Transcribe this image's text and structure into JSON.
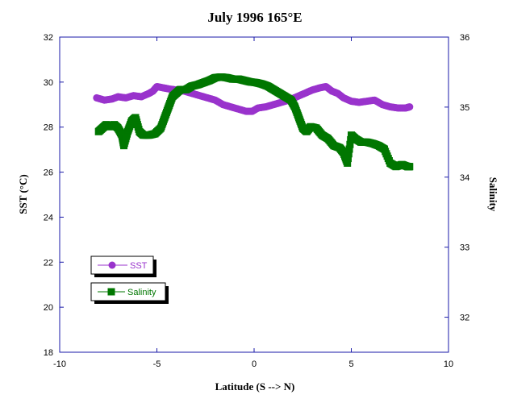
{
  "chart_data": {
    "type": "scatter",
    "title": "July 1996 165°E",
    "xlabel": "Latitude (S --> N)",
    "ylabel": "SST (°C)",
    "y2label": "Salinity",
    "xlim": [
      -10,
      10
    ],
    "ylim": [
      18,
      32
    ],
    "y2lim": [
      31.5,
      36
    ],
    "x_ticks": [
      "-10",
      "-5",
      "0",
      "5",
      "10"
    ],
    "y_ticks": [
      "18",
      "20",
      "22",
      "24",
      "26",
      "28",
      "30",
      "32"
    ],
    "y2_ticks": [
      "32",
      "33",
      "34",
      "35",
      "36"
    ],
    "grid": false,
    "series": [
      {
        "name": "SST",
        "axis": "left",
        "color": "#9933CC",
        "marker": "circle",
        "x": [
          -8.1,
          -7.7,
          -7.3,
          -7.0,
          -6.6,
          -6.2,
          -5.8,
          -5.4,
          -5.2,
          -5.0,
          -4.7,
          -4.4,
          -4.0,
          -3.6,
          -3.2,
          -2.8,
          -2.4,
          -2.0,
          -1.6,
          -1.2,
          -0.8,
          -0.4,
          -0.1,
          0.2,
          0.6,
          1.0,
          1.4,
          1.8,
          2.2,
          2.6,
          3.0,
          3.4,
          3.7,
          4.0,
          4.3,
          4.6,
          5.0,
          5.4,
          5.8,
          6.2,
          6.6,
          7.0,
          7.4,
          7.8,
          8.0
        ],
        "y": [
          29.3,
          29.2,
          29.25,
          29.35,
          29.3,
          29.4,
          29.35,
          29.5,
          29.6,
          29.8,
          29.75,
          29.7,
          29.65,
          29.6,
          29.5,
          29.4,
          29.3,
          29.2,
          29.0,
          28.9,
          28.8,
          28.7,
          28.7,
          28.85,
          28.9,
          29.0,
          29.1,
          29.2,
          29.35,
          29.5,
          29.65,
          29.75,
          29.8,
          29.6,
          29.5,
          29.3,
          29.15,
          29.1,
          29.15,
          29.2,
          29.0,
          28.9,
          28.85,
          28.85,
          28.9
        ]
      },
      {
        "name": "Salinity",
        "axis": "right",
        "color": "#007700",
        "marker": "square",
        "x": [
          -8.0,
          -7.8,
          -7.6,
          -7.4,
          -7.2,
          -7.0,
          -6.8,
          -6.7,
          -6.5,
          -6.3,
          -6.1,
          -5.9,
          -5.7,
          -5.4,
          -5.1,
          -4.8,
          -4.6,
          -4.4,
          -4.2,
          -4.0,
          -3.8,
          -3.5,
          -3.2,
          -2.9,
          -2.6,
          -2.3,
          -2.0,
          -1.7,
          -1.4,
          -1.1,
          -0.8,
          -0.5,
          -0.2,
          0.1,
          0.4,
          0.7,
          1.0,
          1.3,
          1.6,
          1.9,
          2.1,
          2.3,
          2.5,
          2.7,
          2.9,
          3.2,
          3.5,
          3.8,
          4.1,
          4.4,
          4.6,
          4.8,
          5.0,
          5.2,
          5.5,
          5.8,
          6.1,
          6.4,
          6.7,
          7.0,
          7.3,
          7.6,
          7.9,
          8.0
        ],
        "y": [
          34.65,
          34.7,
          34.75,
          34.72,
          34.75,
          34.7,
          34.6,
          34.45,
          34.65,
          34.8,
          34.85,
          34.65,
          34.6,
          34.6,
          34.62,
          34.7,
          34.85,
          35.0,
          35.15,
          35.2,
          35.25,
          35.25,
          35.3,
          35.32,
          35.35,
          35.38,
          35.42,
          35.43,
          35.42,
          35.4,
          35.4,
          35.38,
          35.36,
          35.35,
          35.33,
          35.3,
          35.25,
          35.2,
          35.15,
          35.1,
          35.0,
          34.85,
          34.7,
          34.65,
          34.72,
          34.7,
          34.6,
          34.55,
          34.45,
          34.42,
          34.35,
          34.2,
          34.6,
          34.55,
          34.5,
          34.5,
          34.48,
          34.45,
          34.4,
          34.2,
          34.15,
          34.18,
          34.15,
          34.15
        ]
      }
    ],
    "legend": [
      {
        "label": "SST",
        "color": "#9933CC"
      },
      {
        "label": "Salinity",
        "color": "#007700"
      }
    ]
  }
}
